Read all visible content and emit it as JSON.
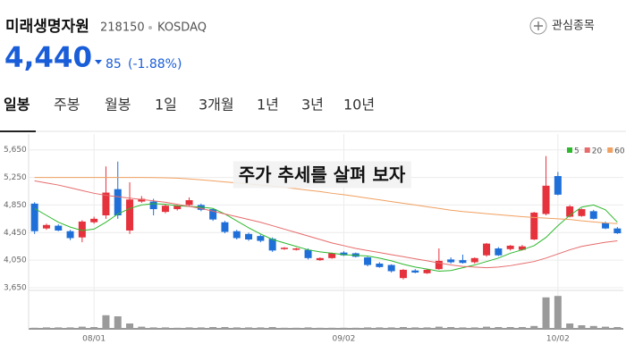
{
  "header": {
    "name": "미래생명자원",
    "code": "218150",
    "market": "KOSDAQ",
    "watch": "관심종목",
    "price": "4,440",
    "change": "85",
    "change_pct": "(-1.88%)",
    "tabs": [
      "일봉",
      "주봉",
      "월봉",
      "1일",
      "3개월",
      "1년",
      "3년",
      "10년"
    ]
  },
  "chart_data": {
    "type": "candlestick",
    "annotation": "주가 추세를 살펴 보자",
    "categories": [
      null,
      null,
      null,
      null,
      null,
      "08/01",
      null,
      null,
      null,
      null,
      null,
      null,
      null,
      null,
      null,
      null,
      null,
      null,
      null,
      null,
      null,
      null,
      null,
      null,
      null,
      null,
      "09/02",
      null,
      null,
      null,
      null,
      null,
      null,
      null,
      null,
      null,
      null,
      null,
      null,
      null,
      null,
      null,
      null,
      null,
      "10/02",
      null,
      null,
      null,
      null,
      null
    ],
    "open": [
      4870,
      4510,
      4550,
      4470,
      4380,
      4600,
      4700,
      5080,
      4480,
      4900,
      4900,
      4750,
      4790,
      4850,
      4850,
      4790,
      4600,
      4470,
      4430,
      4400,
      4360,
      4210,
      4200,
      4200,
      4050,
      4080,
      4160,
      4150,
      4090,
      4000,
      3980,
      3790,
      3900,
      3860,
      3920,
      4060,
      4050,
      4020,
      4120,
      4220,
      4210,
      4200,
      4350,
      4720,
      5270,
      4680,
      4690,
      4760,
      4590,
      4510
    ],
    "high": [
      4890,
      4580,
      4570,
      4490,
      4630,
      4680,
      5410,
      5480,
      5180,
      4980,
      4940,
      4860,
      4850,
      4960,
      4870,
      4800,
      4620,
      4490,
      4450,
      4420,
      4380,
      4240,
      4230,
      4220,
      4090,
      4160,
      4180,
      4160,
      4100,
      4020,
      3990,
      3920,
      3920,
      3920,
      4220,
      4090,
      4130,
      4090,
      4300,
      4240,
      4270,
      4270,
      4750,
      5560,
      5330,
      4850,
      4800,
      4780,
      4610,
      4530
    ],
    "low": [
      4430,
      4490,
      4470,
      4340,
      4310,
      4580,
      4650,
      4650,
      4430,
      4880,
      4700,
      4730,
      4770,
      4830,
      4760,
      4620,
      4440,
      4350,
      4330,
      4310,
      4170,
      4200,
      4190,
      4060,
      4040,
      4070,
      4110,
      4090,
      3960,
      3940,
      3870,
      3770,
      3860,
      3850,
      3910,
      4000,
      4000,
      4000,
      4100,
      4110,
      4190,
      4190,
      4340,
      4700,
      4990,
      4670,
      4680,
      4640,
      4500,
      4430
    ],
    "close": [
      4470,
      4560,
      4480,
      4370,
      4610,
      4650,
      5030,
      4700,
      4930,
      4940,
      4790,
      4840,
      4840,
      4920,
      4780,
      4640,
      4460,
      4370,
      4350,
      4330,
      4190,
      4230,
      4220,
      4080,
      4080,
      4150,
      4120,
      4100,
      3980,
      3950,
      3890,
      3910,
      3870,
      3910,
      4040,
      4020,
      4010,
      4080,
      4290,
      4120,
      4260,
      4250,
      4740,
      5130,
      5000,
      4830,
      4790,
      4650,
      4510,
      4440
    ],
    "volume": [
      3,
      4,
      4,
      4,
      6,
      5,
      38,
      35,
      15,
      6,
      4,
      4,
      3,
      4,
      4,
      5,
      5,
      4,
      4,
      4,
      5,
      3,
      3,
      4,
      3,
      3,
      3,
      3,
      4,
      4,
      4,
      5,
      4,
      4,
      6,
      5,
      4,
      4,
      6,
      5,
      5,
      5,
      8,
      88,
      92,
      15,
      10,
      8,
      6,
      5
    ],
    "volume_ylim": [
      0,
      100
    ],
    "series": [
      {
        "name": "5",
        "color": "#2db82d",
        "values": [
          4800,
          4700,
          4600,
          4530,
          4480,
          4500,
          4600,
          4720,
          4800,
          4850,
          4870,
          4860,
          4840,
          4830,
          4820,
          4800,
          4720,
          4620,
          4520,
          4430,
          4350,
          4300,
          4250,
          4200,
          4170,
          4150,
          4130,
          4120,
          4110,
          4080,
          4040,
          3990,
          3950,
          3920,
          3890,
          3900,
          3940,
          3980,
          4030,
          4080,
          4150,
          4200,
          4260,
          4380,
          4550,
          4700,
          4820,
          4850,
          4780,
          4600
        ]
      },
      {
        "name": "20",
        "color": "#e66b6b",
        "values": [
          5200,
          5170,
          5140,
          5100,
          5060,
          5020,
          4990,
          4970,
          4950,
          4930,
          4910,
          4890,
          4860,
          4830,
          4800,
          4760,
          4720,
          4680,
          4640,
          4600,
          4550,
          4500,
          4450,
          4400,
          4350,
          4300,
          4260,
          4220,
          4190,
          4160,
          4130,
          4100,
          4070,
          4040,
          4010,
          3980,
          3960,
          3950,
          3940,
          3950,
          3970,
          4000,
          4030,
          4080,
          4140,
          4200,
          4250,
          4280,
          4310,
          4330
        ]
      },
      {
        "name": "60",
        "color": "#f0a060",
        "values": [
          5250,
          5250,
          5250,
          5250,
          5250,
          5250,
          5250,
          5250,
          5250,
          5250,
          5248,
          5245,
          5240,
          5228,
          5215,
          5200,
          5185,
          5170,
          5155,
          5140,
          5125,
          5105,
          5085,
          5065,
          5045,
          5020,
          5000,
          4975,
          4950,
          4925,
          4900,
          4875,
          4850,
          4825,
          4800,
          4775,
          4755,
          4740,
          4725,
          4710,
          4695,
          4680,
          4670,
          4660,
          4650,
          4640,
          4620,
          4605,
          4590,
          4580
        ]
      }
    ],
    "up_color": "#e5323c",
    "down_color": "#1f6fd9",
    "volume_color": "#9a9a9a",
    "ylim": [
      3650,
      5750
    ],
    "yticks": [
      {
        "value": 5650,
        "label": "5,650"
      },
      {
        "value": 5250,
        "label": "5,250"
      },
      {
        "value": 4850,
        "label": "4,850"
      },
      {
        "value": 4450,
        "label": "4,450"
      },
      {
        "value": 4050,
        "label": "4,050"
      },
      {
        "value": 3650,
        "label": "3,650"
      }
    ],
    "grid": true,
    "legend": "top-right"
  }
}
